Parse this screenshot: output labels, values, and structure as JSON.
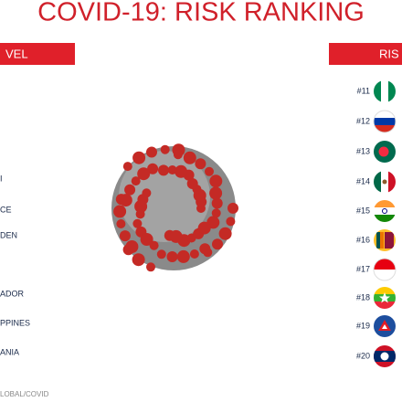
{
  "header": {
    "title": "COVID-19: RISK RANKING",
    "left_label": "VEL",
    "right_label": "RIS"
  },
  "left_list": [
    "I",
    "CE",
    "DEN",
    "ADOR",
    "PPINES",
    "ANIA"
  ],
  "right_list": [
    "#11",
    "#12",
    "#13",
    "#14",
    "#15",
    "#16",
    "#17",
    "#18",
    "#19",
    "#20"
  ],
  "footer": "LOBAL/COVID"
}
